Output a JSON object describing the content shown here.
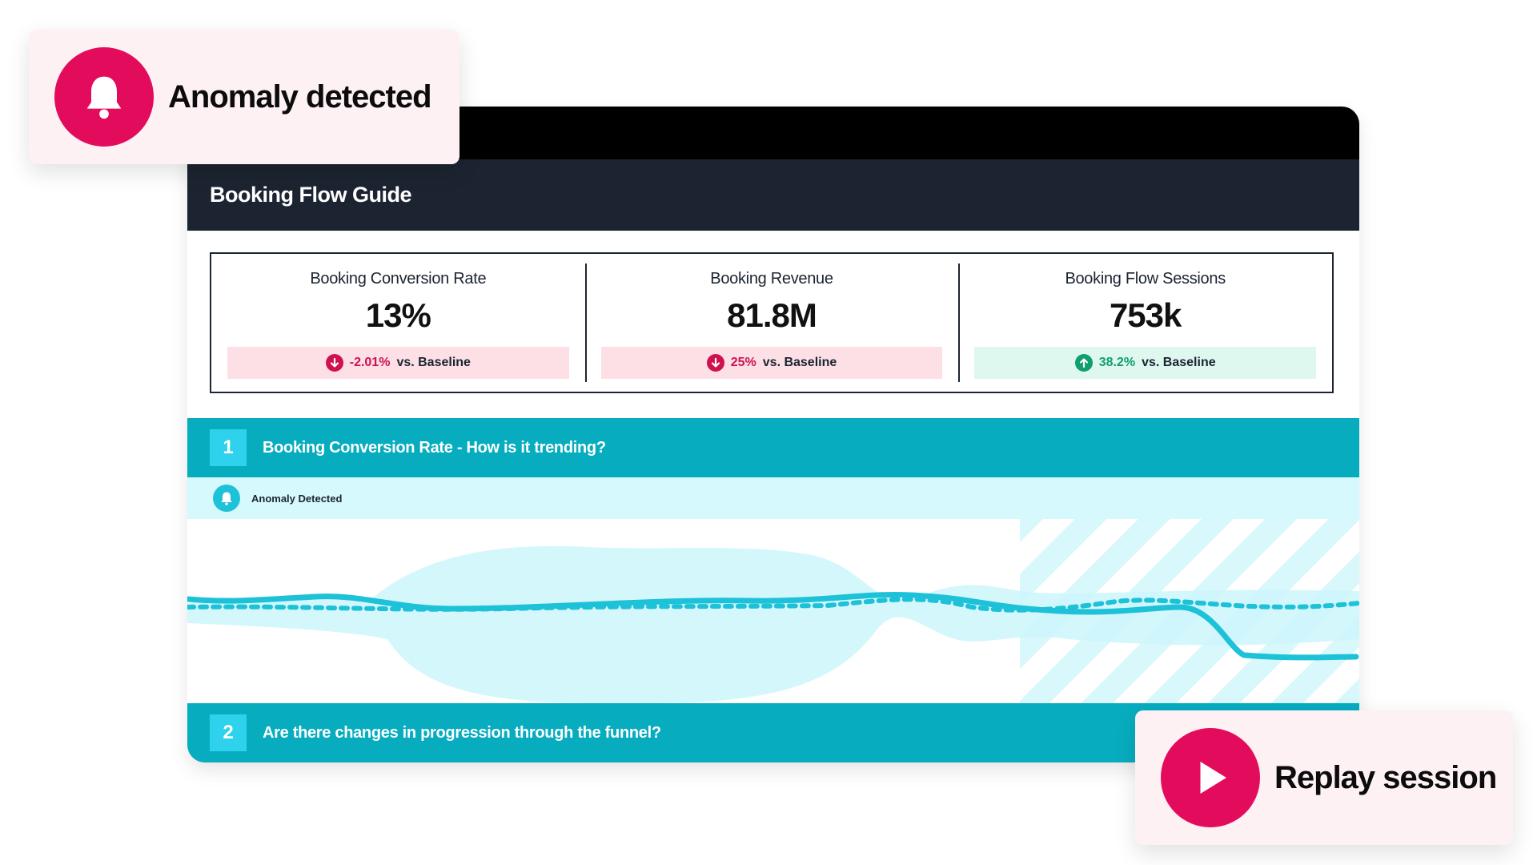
{
  "dashboard": {
    "title": "Booking Flow Guide",
    "kpis": [
      {
        "label": "Booking Conversion Rate",
        "value": "13%",
        "change": "-2.01%",
        "direction": "down",
        "suffix": "vs. Baseline"
      },
      {
        "label": "Booking Revenue",
        "value": "81.8M",
        "change": "25%",
        "direction": "down",
        "suffix": "vs. Baseline"
      },
      {
        "label": "Booking Flow Sessions",
        "value": "753k",
        "change": "38.2%",
        "direction": "up",
        "suffix": "vs. Baseline"
      }
    ],
    "sections": [
      {
        "number": "1",
        "title": "Booking Conversion Rate - How is it trending?"
      },
      {
        "number": "2",
        "title": "Are there changes in progression through the funnel?"
      }
    ],
    "anomaly_strip": {
      "label": "Anomaly Detected",
      "icon": "bell-icon"
    }
  },
  "callouts": {
    "anomaly": {
      "text": "Anomaly detected",
      "icon": "bell-icon"
    },
    "replay": {
      "text": "Replay session",
      "icon": "play-icon"
    }
  },
  "colors": {
    "accent_pink": "#e30c5c",
    "negative": "#cf1150",
    "positive": "#0f9e6e",
    "teal_bar": "#07adbf",
    "teal_line": "#1ec2d8",
    "navy": "#1c2431"
  }
}
